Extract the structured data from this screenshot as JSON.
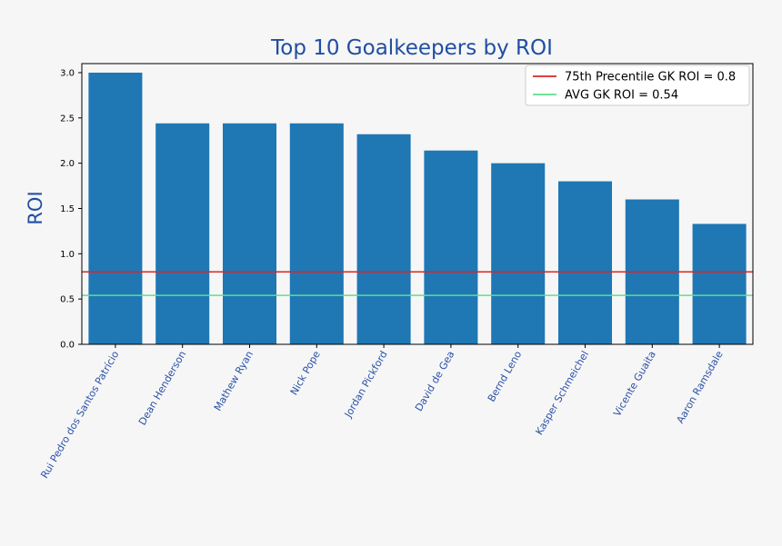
{
  "chart_data": {
    "type": "bar",
    "title": "Top 10 Goalkeepers by ROI",
    "xlabel": "",
    "ylabel": "ROI",
    "categories": [
      "Rui Pedro dos Santos Patrício",
      "Dean Henderson",
      "Mathew Ryan",
      "Nick Pope",
      "Jordan Pickford",
      "David de Gea",
      "Bernd Leno",
      "Kasper Schmeichel",
      "Vicente Guaita",
      "Aaron Ramsdale"
    ],
    "values": [
      3.0,
      2.44,
      2.44,
      2.44,
      2.32,
      2.14,
      2.0,
      1.8,
      1.6,
      1.33
    ],
    "ylim": [
      0,
      3.1
    ],
    "yticks": [
      "0.0",
      "0.5",
      "1.0",
      "1.5",
      "2.0",
      "2.5",
      "3.0"
    ],
    "grid": false,
    "bar_color": "#1f77b4",
    "reference_lines": [
      {
        "label": "75th Precentile GK ROI = 0.8",
        "value": 0.8,
        "color": "#d62728"
      },
      {
        "label": "AVG GK ROI = 0.54",
        "value": 0.54,
        "color": "#5ddf8f"
      }
    ],
    "legend_position": "top-right",
    "title_color": "#1f4ea3",
    "tick_label_color": "#2d52a8"
  }
}
